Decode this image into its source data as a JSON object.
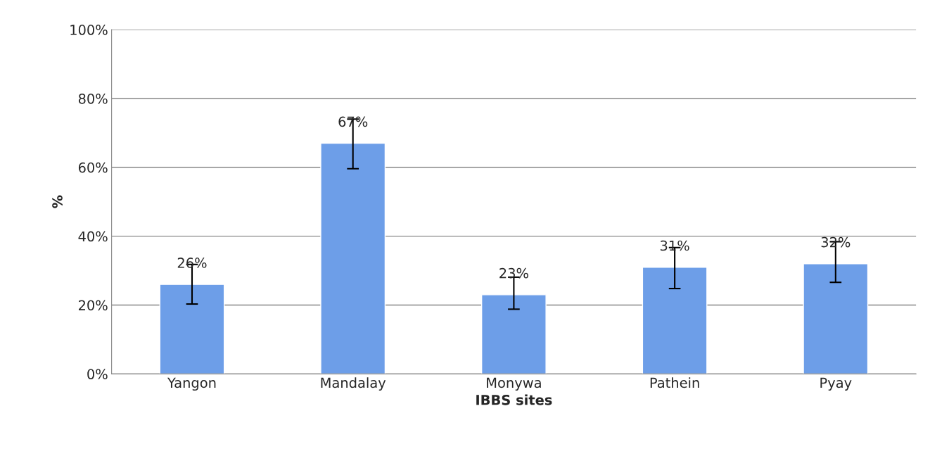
{
  "chart_data": {
    "type": "bar",
    "xlabel": "IBBS sites",
    "ylabel": "%",
    "categories": [
      "Yangon",
      "Mandalay",
      "Monywa",
      "Pathein",
      "Pyay"
    ],
    "values": [
      26,
      67,
      23,
      31,
      32
    ],
    "value_labels": [
      "26%",
      "67%",
      "23%",
      "31%",
      "32%"
    ],
    "errors": [
      [
        20.3,
        31.8
      ],
      [
        59.6,
        74
      ],
      [
        18.8,
        28.1
      ],
      [
        24.8,
        36.7
      ],
      [
        26.6,
        38.4
      ]
    ],
    "color": "#6d9ee8",
    "ylim": [
      0,
      100
    ],
    "yticks": [
      {
        "value": 0,
        "label": "0%"
      },
      {
        "value": 20,
        "label": "20%"
      },
      {
        "value": 40,
        "label": "40%"
      },
      {
        "value": 60,
        "label": "60%"
      },
      {
        "value": 80,
        "label": "80%"
      },
      {
        "value": 100,
        "label": "100%"
      }
    ],
    "grid": "y",
    "legend": false
  }
}
